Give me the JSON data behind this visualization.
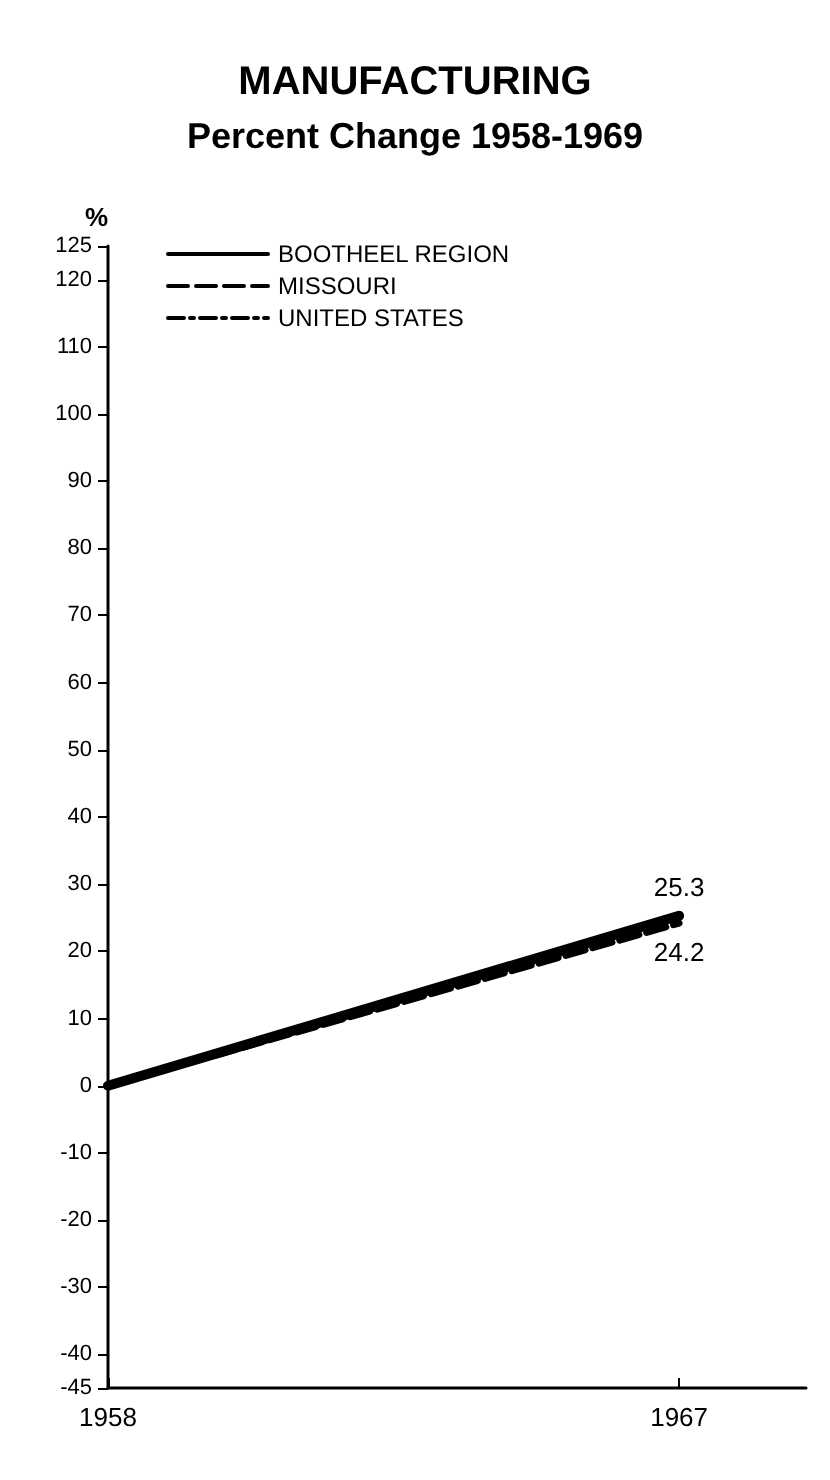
{
  "chart_data": {
    "type": "line",
    "title": "MANUFACTURING",
    "subtitle": "Percent Change 1958-1969",
    "ylabel": "%",
    "x": [
      1958,
      1967
    ],
    "series": [
      {
        "name": "BOOTHEEL REGION",
        "color": "#000000",
        "values": [
          0,
          25.3
        ],
        "value_labels": [
          null,
          "25.3"
        ],
        "line_style": "solid"
      },
      {
        "name": "MISSOURI",
        "color": "#000000",
        "values": [
          0,
          24.2
        ],
        "value_labels": [
          null,
          "24.2"
        ],
        "line_style": "dashed"
      },
      {
        "name": "UNITED STATES",
        "color": "#000000",
        "values": [
          null,
          null
        ],
        "line_style": "dotted"
      }
    ],
    "xlim": [
      1958,
      1969
    ],
    "xticks": [
      1958,
      1967
    ],
    "ylim": [
      -45,
      125
    ],
    "yticks": [
      -45,
      -40,
      -30,
      -20,
      -10,
      0,
      10,
      20,
      30,
      40,
      50,
      60,
      70,
      80,
      90,
      100,
      110,
      120,
      125
    ],
    "grid": false,
    "legend": "top left",
    "marker": "none"
  }
}
